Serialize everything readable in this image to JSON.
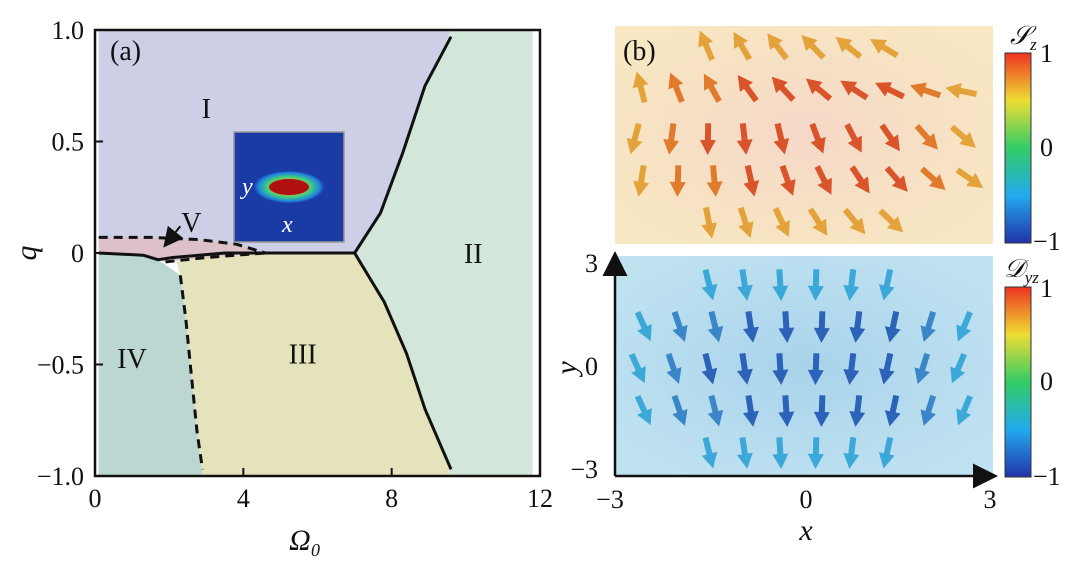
{
  "figure": {
    "panel_a_label": "(a)",
    "panel_b_label": "(b)"
  },
  "chart_data": [
    {
      "type": "area",
      "panel": "(a)",
      "title": "",
      "xlabel": "Ω₀",
      "ylabel": "q",
      "xlim": [
        0,
        12
      ],
      "ylim": [
        -1.0,
        1.0
      ],
      "xticks": [
        "0",
        "4",
        "8",
        "12"
      ],
      "yticks": [
        "1.0",
        "0.5",
        "0",
        "−0.5",
        "−1.0"
      ],
      "regions": [
        {
          "label": "I",
          "color": "#cccfe6",
          "label_at": [
            3.0,
            0.65
          ]
        },
        {
          "label": "II",
          "color": "#d2e6da",
          "label_at": [
            10.2,
            0.0
          ]
        },
        {
          "label": "III",
          "color": "#e4e3bb",
          "label_at": [
            5.6,
            -0.45
          ]
        },
        {
          "label": "IV",
          "color": "#bcd7d2",
          "label_at": [
            1.0,
            -0.47
          ]
        },
        {
          "label": "V",
          "color": "#dcc2c8",
          "label_at": [
            2.6,
            0.14
          ]
        }
      ],
      "boundaries": [
        {
          "style": "solid",
          "points": [
            [
              0.1,
              0.0
            ],
            [
              1.3,
              -0.01
            ],
            [
              1.7,
              -0.03
            ],
            [
              2.1,
              -0.02
            ],
            [
              3.5,
              0.0
            ],
            [
              7.0,
              0.0
            ]
          ]
        },
        {
          "style": "solid",
          "points": [
            [
              7.0,
              0.0
            ],
            [
              7.7,
              0.18
            ],
            [
              8.3,
              0.45
            ],
            [
              8.9,
              0.75
            ],
            [
              9.6,
              0.97
            ]
          ]
        },
        {
          "style": "solid",
          "points": [
            [
              7.0,
              0.0
            ],
            [
              7.8,
              -0.22
            ],
            [
              8.4,
              -0.45
            ],
            [
              8.9,
              -0.7
            ],
            [
              9.6,
              -0.97
            ]
          ]
        },
        {
          "style": "dashed",
          "points": [
            [
              0.1,
              0.07
            ],
            [
              1.5,
              0.07
            ],
            [
              2.8,
              0.06
            ],
            [
              3.8,
              0.04
            ],
            [
              4.6,
              0.0
            ]
          ]
        },
        {
          "style": "dashed",
          "points": [
            [
              1.9,
              -0.04
            ],
            [
              3.0,
              -0.02
            ],
            [
              4.6,
              0.0
            ]
          ]
        },
        {
          "style": "dashed",
          "points": [
            [
              2.3,
              -0.1
            ],
            [
              2.45,
              -0.3
            ],
            [
              2.6,
              -0.55
            ],
            [
              2.75,
              -0.8
            ],
            [
              2.9,
              -0.97
            ]
          ]
        }
      ],
      "annotations": [
        {
          "text": "V",
          "arrow_from": [
            2.3,
            0.12
          ],
          "arrow_to": [
            1.8,
            0.02
          ]
        }
      ],
      "inset": {
        "xlabel": "x",
        "ylabel": "y"
      }
    },
    {
      "type": "scatter",
      "panel": "(b) top",
      "colorbar_label": "S_z",
      "colorbar_ticks": [
        "1",
        "0",
        "−1"
      ],
      "colormap": [
        "#2233aa",
        "#22aaee",
        "#33cc66",
        "#eedd33",
        "#ee3322"
      ],
      "note": "vector field of arrows, orange-red"
    },
    {
      "type": "scatter",
      "panel": "(b) bottom",
      "xlabel": "x",
      "ylabel": "y",
      "xlim": [
        -3,
        3
      ],
      "ylim": [
        -3,
        3
      ],
      "xticks": [
        "−3",
        "0",
        "3"
      ],
      "yticks": [
        "3",
        "0",
        "−3"
      ],
      "colorbar_label": "D_yz",
      "colorbar_ticks": [
        "1",
        "0",
        "−1"
      ],
      "colormap": [
        "#2233aa",
        "#22aaee",
        "#33cc66",
        "#eedd33",
        "#ee3322"
      ],
      "note": "vector field of arrows, blue"
    }
  ]
}
